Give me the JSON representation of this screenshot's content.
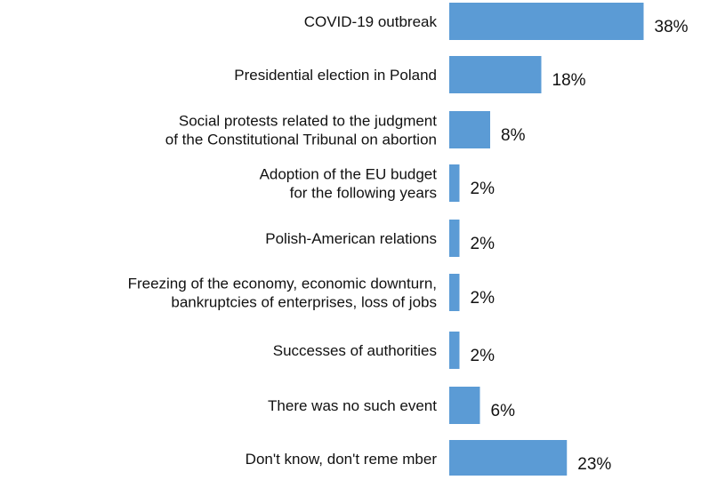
{
  "chart_data": {
    "type": "bar",
    "orientation": "horizontal",
    "categories": [
      [
        "COVID-19 outbreak"
      ],
      [
        "Presidential election in Poland"
      ],
      [
        "Social protests related to the judgment",
        "of the Constitutional Tribunal on abortion"
      ],
      [
        "Adoption of the EU budget",
        "for the following years"
      ],
      [
        "Polish-American relations"
      ],
      [
        "Freezing of the economy, economic downturn,",
        "bankruptcies of enterprises, loss of jobs"
      ],
      [
        "Successes of authorities"
      ],
      [
        "There was no such event"
      ],
      [
        "Don't know, don't reme  mber"
      ]
    ],
    "values": [
      38,
      18,
      8,
      2,
      2,
      2,
      2,
      6,
      23
    ],
    "value_labels": [
      "38%",
      "18%",
      "8%",
      "2%",
      "2%",
      "2%",
      "2%",
      "6%",
      "23%"
    ],
    "unit": "%",
    "xlim": [
      0,
      40
    ],
    "bar_color": "#5b9bd5",
    "grid": false,
    "legend": "none"
  }
}
